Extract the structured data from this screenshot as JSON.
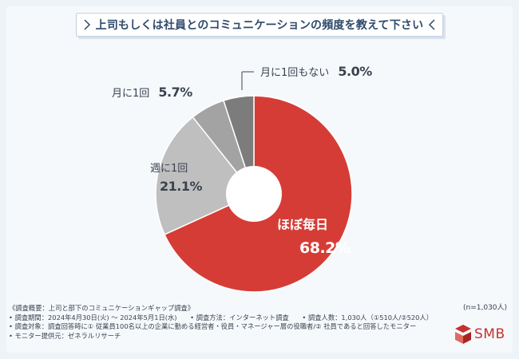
{
  "title": "上司もしくは社員とのコミュニケーションの頻度を教えて下さい",
  "sample_note": "(n=1,030人)",
  "footer_lines": [
    "《調査概要：上司と部下のコミュニケーションギャップ調査》",
    "• 調査期間：2024年4月30日(火) ～ 2024年5月1日(水)　　• 調査方法：インターネット調査　　• 調査人数：1,030人（①510人/②520人）",
    "• 調査対象：調査回答時に① 従業員100名以上の企業に勤める経営者・役員・マネージャー層の役職者/② 社員であると回答したモニター",
    "• モニター提供元：ゼネラルリサーチ"
  ],
  "logo_text": "SMB",
  "colors": {
    "brand": "#c5322f",
    "title": "#2f4a6b"
  },
  "chart_data": {
    "type": "pie",
    "donut": true,
    "title": "上司もしくは社員とのコミュニケーションの頻度を教えて下さい",
    "categories": [
      "ほぼ毎日",
      "週に1回",
      "月に1回",
      "月に1回もない"
    ],
    "values": [
      68.2,
      21.1,
      5.7,
      5.0
    ],
    "value_labels": [
      "68.2%",
      "21.1%",
      "5.7%",
      "5.0%"
    ],
    "colors": [
      "#d63c36",
      "#bfbfbf",
      "#a3a3a3",
      "#7c7c7c"
    ],
    "start": "clockwise from 12 o'clock"
  }
}
